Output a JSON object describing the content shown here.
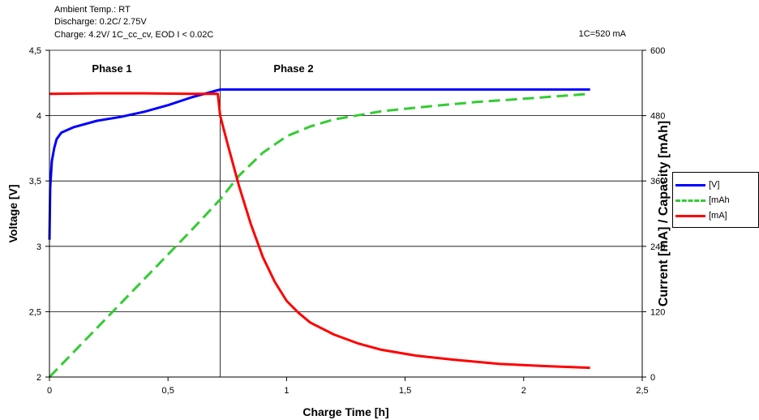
{
  "chart_data": {
    "type": "line",
    "info_lines": [
      "Ambient Temp.: RT",
      "Discharge: 0.2C/ 2.75V",
      "Charge: 4.2V/ 1C_cc_cv, EOD I < 0.02C"
    ],
    "c_rate_note": "1C=520 mA",
    "xlabel": "Charge Time [h]",
    "ylabel_left": "Voltage [V]",
    "ylabel_right": "Current [mA] / Capacity [mAh]",
    "xlim": [
      0,
      2.5
    ],
    "ylim_left": [
      2,
      4.5
    ],
    "ylim_right": [
      0,
      600
    ],
    "x_ticks": [
      "0",
      "0,5",
      "1",
      "1,5",
      "2",
      "2,5"
    ],
    "y_left_ticks": [
      "2",
      "2,5",
      "3",
      "3,5",
      "4",
      "4,5"
    ],
    "y_right_ticks": [
      "0",
      "120",
      "240",
      "360",
      "480",
      "600"
    ],
    "grid": "horizontal",
    "legend_position": "right",
    "phase_divider_x": 0.72,
    "phases": [
      "Phase 1",
      "Phase 2"
    ],
    "series": [
      {
        "name": "[V]",
        "axis": "left",
        "color": "#0000ff",
        "dash": "solid",
        "x": [
          0,
          0.003,
          0.01,
          0.02,
          0.03,
          0.05,
          0.1,
          0.2,
          0.3,
          0.4,
          0.5,
          0.6,
          0.7,
          0.72,
          0.8,
          1.0,
          1.5,
          2.0,
          2.28
        ],
        "y": [
          3.05,
          3.45,
          3.65,
          3.75,
          3.82,
          3.87,
          3.91,
          3.96,
          3.99,
          4.03,
          4.08,
          4.14,
          4.19,
          4.2,
          4.2,
          4.2,
          4.2,
          4.2,
          4.2
        ]
      },
      {
        "name": "[mAh",
        "axis": "right",
        "color": "#33cc33",
        "dash": "dashed",
        "x": [
          0,
          0.2,
          0.4,
          0.6,
          0.72,
          0.8,
          0.9,
          1.0,
          1.1,
          1.2,
          1.4,
          1.6,
          1.8,
          2.0,
          2.28
        ],
        "y": [
          0,
          90,
          180,
          270,
          326,
          370,
          412,
          442,
          460,
          473,
          488,
          497,
          505,
          511,
          520
        ]
      },
      {
        "name": "[mA]",
        "axis": "right",
        "color": "#ff0000",
        "dash": "solid",
        "x": [
          0,
          0.2,
          0.4,
          0.6,
          0.71,
          0.72,
          0.75,
          0.8,
          0.85,
          0.9,
          0.95,
          1.0,
          1.05,
          1.1,
          1.2,
          1.3,
          1.4,
          1.55,
          1.7,
          1.9,
          2.1,
          2.28
        ],
        "y": [
          520,
          521,
          521,
          520,
          520,
          480,
          430,
          350,
          280,
          220,
          175,
          140,
          118,
          100,
          78,
          62,
          50,
          39,
          32,
          24,
          20,
          17
        ]
      }
    ]
  }
}
